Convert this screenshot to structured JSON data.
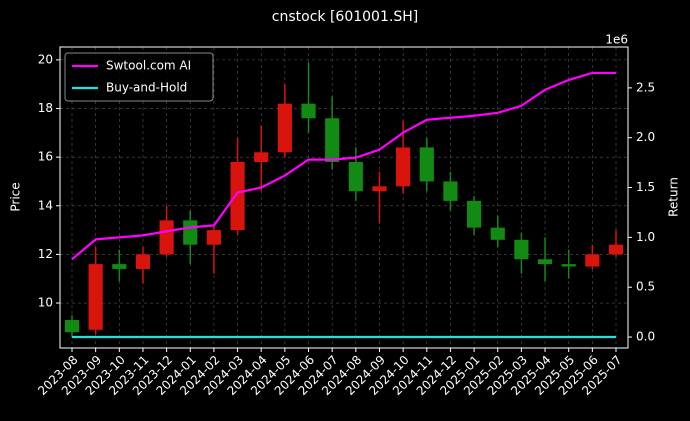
{
  "chart_data": {
    "type": "candlestick",
    "title": "cnstock [601001.SH]",
    "ylabel": "Price",
    "y2label": "Return",
    "y2_offset_label": "1e6",
    "categories": [
      "2023-08",
      "2023-09",
      "2023-10",
      "2023-11",
      "2023-12",
      "2024-01",
      "2024-02",
      "2024-03",
      "2024-04",
      "2024-05",
      "2024-06",
      "2024-07",
      "2024-08",
      "2024-09",
      "2024-10",
      "2024-11",
      "2024-12",
      "2025-01",
      "2025-02",
      "2025-03",
      "2025-04",
      "2025-05",
      "2025-06",
      "2025-07"
    ],
    "open": [
      9.3,
      8.9,
      11.6,
      11.4,
      12.0,
      13.4,
      12.4,
      13.0,
      15.8,
      16.2,
      18.2,
      17.6,
      15.8,
      14.6,
      14.8,
      16.4,
      15.0,
      14.2,
      13.1,
      12.6,
      11.8,
      11.6,
      11.5,
      12.0
    ],
    "high": [
      9.5,
      12.3,
      12.2,
      12.3,
      14.0,
      13.8,
      13.2,
      16.8,
      17.3,
      19.0,
      19.9,
      18.5,
      16.4,
      15.4,
      17.5,
      16.8,
      15.4,
      14.4,
      13.6,
      12.9,
      12.7,
      12.2,
      12.4,
      13.0
    ],
    "low": [
      8.6,
      8.7,
      10.9,
      10.8,
      11.9,
      11.6,
      11.2,
      12.8,
      14.6,
      16.0,
      17.0,
      15.5,
      14.2,
      13.3,
      14.5,
      14.6,
      13.8,
      12.8,
      12.3,
      11.2,
      10.9,
      11.0,
      11.4,
      11.9
    ],
    "close": [
      8.8,
      11.6,
      11.4,
      12.0,
      13.4,
      12.4,
      13.0,
      15.8,
      16.2,
      18.2,
      17.6,
      15.8,
      14.6,
      14.8,
      16.4,
      15.0,
      14.2,
      13.1,
      12.6,
      11.8,
      11.6,
      11.5,
      12.0,
      12.4
    ],
    "up_color": "#d8140c",
    "down_color": "#138a13",
    "series": [
      {
        "name": "Swtool.com AI",
        "color": "#ff00ff",
        "axis": "y2",
        "values": [
          0.78,
          0.98,
          1.0,
          1.02,
          1.06,
          1.1,
          1.12,
          1.45,
          1.5,
          1.62,
          1.78,
          1.78,
          1.8,
          1.88,
          2.05,
          2.18,
          2.2,
          2.22,
          2.25,
          2.32,
          2.48,
          2.58,
          2.65,
          2.65
        ]
      },
      {
        "name": "Buy-and-Hold",
        "color": "#22e0e0",
        "axis": "y2",
        "values": [
          0,
          0,
          0,
          0,
          0,
          0,
          0,
          0,
          0,
          0,
          0,
          0,
          0,
          0,
          0,
          0,
          0,
          0,
          0,
          0,
          0,
          0,
          0,
          0
        ]
      }
    ],
    "ylim": [
      8.15,
      20.53
    ],
    "yticks": [
      10,
      12,
      14,
      16,
      18,
      20
    ],
    "y2lim": [
      -0.11,
      2.91
    ],
    "y2ticks": [
      {
        "value": 0,
        "label": "0.0"
      },
      0.5,
      {
        "value": 1,
        "label": "1.0"
      },
      1.5,
      {
        "value": 2,
        "label": "2.0"
      },
      2.5
    ],
    "grid": true,
    "legend": "upper left"
  }
}
